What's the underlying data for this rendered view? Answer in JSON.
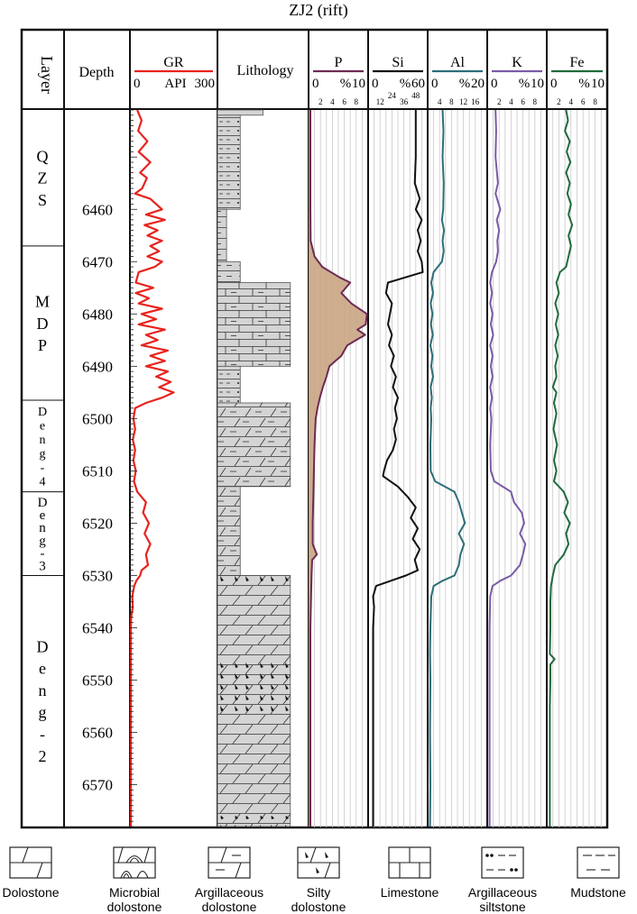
{
  "title": "ZJ2 (rift)",
  "headers": {
    "layer": "Layer",
    "depth": "Depth",
    "lithology": "Lithology"
  },
  "tracks": [
    {
      "id": "gr",
      "name": "GR",
      "scale_left": "0",
      "unit": "API",
      "scale_right": "300",
      "color": "#e8231e",
      "ticks": []
    },
    {
      "id": "p",
      "name": "P",
      "scale_left": "0",
      "unit": "%",
      "scale_right": "10",
      "color": "#6e2a55",
      "ticks": [
        "2",
        "4",
        "6",
        "8"
      ]
    },
    {
      "id": "si",
      "name": "Si",
      "scale_left": "0",
      "unit": "%",
      "scale_right": "60",
      "color": "#111111",
      "ticks": [
        "12",
        "24",
        "36",
        "48"
      ]
    },
    {
      "id": "al",
      "name": "Al",
      "scale_left": "0",
      "unit": "%",
      "scale_right": "20",
      "color": "#2c6e78",
      "ticks": [
        "4",
        "8",
        "12",
        "16"
      ]
    },
    {
      "id": "k",
      "name": "K",
      "scale_left": "0",
      "unit": "%",
      "scale_right": "10",
      "color": "#7b5aa6",
      "ticks": [
        "2",
        "4",
        "6",
        "8"
      ]
    },
    {
      "id": "fe",
      "name": "Fe",
      "scale_left": "0",
      "unit": "%",
      "scale_right": "10",
      "color": "#1e6b3a",
      "ticks": [
        "2",
        "4",
        "6",
        "8"
      ]
    }
  ],
  "depth_axis": {
    "min": 6441,
    "max": 6578,
    "labels": [
      6460,
      6470,
      6480,
      6490,
      6500,
      6510,
      6520,
      6530,
      6540,
      6550,
      6560,
      6570
    ]
  },
  "layers": [
    {
      "name": "QZS",
      "top": 6441,
      "bottom": 6467
    },
    {
      "name": "MDP",
      "top": 6467,
      "bottom": 6496.5
    },
    {
      "name": "Deng-4",
      "top": 6496.5,
      "bottom": 6514
    },
    {
      "name": "Deng-3",
      "top": 6514,
      "bottom": 6530
    },
    {
      "name": "Deng-2",
      "top": 6530,
      "bottom": 6578
    }
  ],
  "lithology_intervals": [
    {
      "top": 6441,
      "bottom": 6442,
      "type": "small",
      "right": 0.5
    },
    {
      "top": 6442,
      "bottom": 6460,
      "type": "argillaceous-siltstone",
      "right": 0.25
    },
    {
      "top": 6460,
      "bottom": 6470,
      "type": "mudstone",
      "right": 0.1
    },
    {
      "top": 6470,
      "bottom": 6474,
      "type": "mudstone",
      "right": 0.25
    },
    {
      "top": 6474,
      "bottom": 6490,
      "type": "limestone",
      "right": 0.8
    },
    {
      "top": 6490,
      "bottom": 6497,
      "type": "argillaceous-siltstone",
      "right": 0.25
    },
    {
      "top": 6497,
      "bottom": 6513,
      "type": "argillaceous-dolostone",
      "right": 0.8
    },
    {
      "top": 6513,
      "bottom": 6530,
      "type": "argillaceous-dolostone",
      "right": 0.25
    },
    {
      "top": 6530,
      "bottom": 6578,
      "type": "dolostone",
      "right": 0.8
    },
    {
      "top": 6530,
      "bottom": 6532,
      "type": "silty-overlay",
      "right": 0.8
    },
    {
      "top": 6546,
      "bottom": 6557,
      "type": "silty-overlay",
      "right": 0.8
    },
    {
      "top": 6576,
      "bottom": 6578,
      "type": "silty-overlay",
      "right": 0.8
    }
  ],
  "curves": {
    "gr": [
      [
        6441,
        25
      ],
      [
        6443,
        40
      ],
      [
        6445,
        28
      ],
      [
        6447,
        60
      ],
      [
        6449,
        30
      ],
      [
        6451,
        70
      ],
      [
        6453,
        35
      ],
      [
        6454,
        58
      ],
      [
        6456,
        42
      ],
      [
        6457,
        18
      ],
      [
        6458,
        70
      ],
      [
        6460,
        110
      ],
      [
        6461,
        55
      ],
      [
        6462,
        120
      ],
      [
        6463,
        50
      ],
      [
        6464,
        95
      ],
      [
        6465,
        60
      ],
      [
        6466,
        110
      ],
      [
        6467,
        70
      ],
      [
        6468,
        100
      ],
      [
        6469,
        60
      ],
      [
        6470,
        110
      ],
      [
        6471,
        85
      ],
      [
        6472,
        30
      ],
      [
        6474,
        20
      ],
      [
        6475,
        80
      ],
      [
        6476,
        20
      ],
      [
        6477,
        65
      ],
      [
        6478,
        30
      ],
      [
        6479,
        110
      ],
      [
        6480,
        40
      ],
      [
        6481,
        90
      ],
      [
        6482,
        30
      ],
      [
        6483,
        120
      ],
      [
        6484,
        55
      ],
      [
        6485,
        95
      ],
      [
        6486,
        40
      ],
      [
        6487,
        130
      ],
      [
        6488,
        70
      ],
      [
        6489,
        120
      ],
      [
        6490,
        55
      ],
      [
        6491,
        130
      ],
      [
        6492,
        90
      ],
      [
        6493,
        140
      ],
      [
        6494,
        100
      ],
      [
        6495,
        150
      ],
      [
        6496,
        110
      ],
      [
        6497,
        55
      ],
      [
        6498,
        18
      ],
      [
        6500,
        12
      ],
      [
        6502,
        18
      ],
      [
        6504,
        10
      ],
      [
        6506,
        18
      ],
      [
        6508,
        12
      ],
      [
        6510,
        20
      ],
      [
        6512,
        14
      ],
      [
        6514,
        25
      ],
      [
        6516,
        55
      ],
      [
        6518,
        45
      ],
      [
        6520,
        65
      ],
      [
        6522,
        50
      ],
      [
        6524,
        70
      ],
      [
        6526,
        55
      ],
      [
        6528,
        62
      ],
      [
        6529,
        40
      ],
      [
        6530,
        35
      ],
      [
        6531,
        22
      ],
      [
        6532,
        15
      ],
      [
        6534,
        8
      ],
      [
        6536,
        10
      ],
      [
        6538,
        4
      ],
      [
        6540,
        3
      ],
      [
        6545,
        3
      ],
      [
        6550,
        3
      ],
      [
        6555,
        3
      ],
      [
        6560,
        3
      ],
      [
        6565,
        3
      ],
      [
        6570,
        3
      ],
      [
        6578,
        3
      ]
    ],
    "p": [
      [
        6441,
        0.3
      ],
      [
        6450,
        0.3
      ],
      [
        6460,
        0.3
      ],
      [
        6466,
        0.35
      ],
      [
        6469,
        1.0
      ],
      [
        6471,
        2.3
      ],
      [
        6473,
        5.2
      ],
      [
        6474,
        7.0
      ],
      [
        6476,
        5.5
      ],
      [
        6478,
        7.2
      ],
      [
        6480,
        9.8
      ],
      [
        6482,
        9.6
      ],
      [
        6483,
        8.2
      ],
      [
        6484,
        9.5
      ],
      [
        6485,
        8.0
      ],
      [
        6486,
        6.5
      ],
      [
        6488,
        5.5
      ],
      [
        6490,
        3.5
      ],
      [
        6492,
        3.0
      ],
      [
        6494,
        2.4
      ],
      [
        6496,
        1.9
      ],
      [
        6498,
        1.5
      ],
      [
        6500,
        1.2
      ],
      [
        6505,
        1.0
      ],
      [
        6510,
        0.9
      ],
      [
        6515,
        0.8
      ],
      [
        6520,
        0.7
      ],
      [
        6524,
        0.7
      ],
      [
        6526,
        1.4
      ],
      [
        6527,
        0.6
      ],
      [
        6530,
        0.5
      ],
      [
        6540,
        0.3
      ],
      [
        6578,
        0.3
      ]
    ],
    "si": [
      [
        6441,
        48
      ],
      [
        6450,
        48
      ],
      [
        6455,
        47
      ],
      [
        6458,
        52
      ],
      [
        6460,
        48
      ],
      [
        6462,
        54
      ],
      [
        6464,
        50
      ],
      [
        6466,
        53
      ],
      [
        6468,
        50
      ],
      [
        6470,
        54
      ],
      [
        6472,
        55
      ],
      [
        6474,
        20
      ],
      [
        6476,
        18
      ],
      [
        6478,
        24
      ],
      [
        6480,
        22
      ],
      [
        6482,
        20
      ],
      [
        6484,
        24
      ],
      [
        6486,
        21
      ],
      [
        6488,
        26
      ],
      [
        6490,
        23
      ],
      [
        6492,
        28
      ],
      [
        6494,
        25
      ],
      [
        6496,
        30
      ],
      [
        6498,
        27
      ],
      [
        6500,
        29
      ],
      [
        6502,
        26
      ],
      [
        6504,
        28
      ],
      [
        6506,
        25
      ],
      [
        6508,
        19
      ],
      [
        6510,
        16
      ],
      [
        6511,
        15
      ],
      [
        6513,
        30
      ],
      [
        6515,
        40
      ],
      [
        6517,
        48
      ],
      [
        6519,
        43
      ],
      [
        6521,
        50
      ],
      [
        6523,
        45
      ],
      [
        6525,
        52
      ],
      [
        6527,
        47
      ],
      [
        6529,
        50
      ],
      [
        6530,
        38
      ],
      [
        6532,
        8
      ],
      [
        6534,
        5
      ],
      [
        6536,
        6
      ],
      [
        6540,
        5
      ],
      [
        6550,
        5
      ],
      [
        6560,
        5
      ],
      [
        6570,
        5
      ],
      [
        6578,
        5
      ]
    ],
    "al": [
      [
        6441,
        5
      ],
      [
        6445,
        5.3
      ],
      [
        6450,
        5
      ],
      [
        6455,
        5.4
      ],
      [
        6460,
        5.2
      ],
      [
        6462,
        4.8
      ],
      [
        6464,
        5.5
      ],
      [
        6466,
        5.0
      ],
      [
        6468,
        5.4
      ],
      [
        6470,
        4.8
      ],
      [
        6472,
        2.0
      ],
      [
        6474,
        1.2
      ],
      [
        6476,
        1.8
      ],
      [
        6478,
        1.0
      ],
      [
        6480,
        1.6
      ],
      [
        6482,
        1.1
      ],
      [
        6484,
        1.7
      ],
      [
        6486,
        0.9
      ],
      [
        6488,
        1.6
      ],
      [
        6490,
        1.2
      ],
      [
        6492,
        1.8
      ],
      [
        6494,
        1.0
      ],
      [
        6496,
        1.4
      ],
      [
        6498,
        1.0
      ],
      [
        6500,
        1.2
      ],
      [
        6505,
        0.9
      ],
      [
        6510,
        1.0
      ],
      [
        6512,
        2.5
      ],
      [
        6514,
        9.0
      ],
      [
        6516,
        10.5
      ],
      [
        6518,
        11.5
      ],
      [
        6520,
        12.5
      ],
      [
        6522,
        10.5
      ],
      [
        6524,
        12.2
      ],
      [
        6526,
        11.0
      ],
      [
        6528,
        10.5
      ],
      [
        6530,
        9.0
      ],
      [
        6531,
        5.0
      ],
      [
        6532,
        2.0
      ],
      [
        6534,
        1.2
      ],
      [
        6540,
        0.9
      ],
      [
        6545,
        0.8
      ],
      [
        6550,
        0.9
      ],
      [
        6560,
        0.8
      ],
      [
        6570,
        0.9
      ],
      [
        6578,
        0.8
      ]
    ],
    "k": [
      [
        6441,
        1.4
      ],
      [
        6445,
        1.5
      ],
      [
        6450,
        1.4
      ],
      [
        6455,
        1.8
      ],
      [
        6457,
        1.4
      ],
      [
        6460,
        2.2
      ],
      [
        6462,
        1.6
      ],
      [
        6464,
        2.0
      ],
      [
        6466,
        1.7
      ],
      [
        6468,
        1.8
      ],
      [
        6470,
        1.5
      ],
      [
        6472,
        0.8
      ],
      [
        6474,
        0.5
      ],
      [
        6476,
        0.8
      ],
      [
        6478,
        0.5
      ],
      [
        6480,
        0.9
      ],
      [
        6482,
        0.6
      ],
      [
        6484,
        1.0
      ],
      [
        6486,
        0.5
      ],
      [
        6488,
        0.9
      ],
      [
        6490,
        0.6
      ],
      [
        6492,
        0.9
      ],
      [
        6494,
        0.5
      ],
      [
        6496,
        0.8
      ],
      [
        6498,
        0.5
      ],
      [
        6500,
        0.7
      ],
      [
        6505,
        0.5
      ],
      [
        6510,
        0.6
      ],
      [
        6512,
        1.2
      ],
      [
        6514,
        4.0
      ],
      [
        6516,
        4.5
      ],
      [
        6518,
        5.8
      ],
      [
        6520,
        6.2
      ],
      [
        6522,
        5.5
      ],
      [
        6524,
        6.4
      ],
      [
        6526,
        6.0
      ],
      [
        6528,
        5.5
      ],
      [
        6530,
        4.0
      ],
      [
        6531,
        2.2
      ],
      [
        6532,
        0.9
      ],
      [
        6534,
        0.5
      ],
      [
        6540,
        0.4
      ],
      [
        6545,
        0.4
      ],
      [
        6550,
        0.4
      ],
      [
        6560,
        0.4
      ],
      [
        6570,
        0.4
      ],
      [
        6578,
        0.4
      ]
    ],
    "fe": [
      [
        6441,
        3.2
      ],
      [
        6443,
        3.5
      ],
      [
        6445,
        3.0
      ],
      [
        6447,
        3.8
      ],
      [
        6449,
        3.3
      ],
      [
        6451,
        3.9
      ],
      [
        6453,
        3.2
      ],
      [
        6455,
        3.8
      ],
      [
        6457,
        3.4
      ],
      [
        6459,
        4.0
      ],
      [
        6461,
        3.6
      ],
      [
        6463,
        4.2
      ],
      [
        6465,
        3.6
      ],
      [
        6467,
        4.0
      ],
      [
        6469,
        3.6
      ],
      [
        6471,
        3.2
      ],
      [
        6472,
        2.2
      ],
      [
        6474,
        1.6
      ],
      [
        6476,
        2.0
      ],
      [
        6478,
        1.4
      ],
      [
        6480,
        1.9
      ],
      [
        6482,
        1.5
      ],
      [
        6484,
        1.9
      ],
      [
        6486,
        1.4
      ],
      [
        6488,
        1.8
      ],
      [
        6490,
        1.4
      ],
      [
        6492,
        1.6
      ],
      [
        6494,
        1.0
      ],
      [
        6495,
        1.6
      ],
      [
        6497,
        1.2
      ],
      [
        6499,
        1.6
      ],
      [
        6502,
        1.1
      ],
      [
        6505,
        1.7
      ],
      [
        6508,
        1.2
      ],
      [
        6510,
        1.6
      ],
      [
        6512,
        1.2
      ],
      [
        6514,
        2.8
      ],
      [
        6516,
        3.5
      ],
      [
        6518,
        2.9
      ],
      [
        6520,
        3.8
      ],
      [
        6522,
        3.2
      ],
      [
        6524,
        3.6
      ],
      [
        6526,
        2.8
      ],
      [
        6528,
        1.4
      ],
      [
        6530,
        1.0
      ],
      [
        6532,
        0.7
      ],
      [
        6535,
        0.6
      ],
      [
        6540,
        0.6
      ],
      [
        6545,
        0.5
      ],
      [
        6546,
        1.3
      ],
      [
        6547,
        0.6
      ],
      [
        6550,
        0.6
      ],
      [
        6555,
        0.5
      ],
      [
        6560,
        0.5
      ],
      [
        6570,
        0.5
      ],
      [
        6578,
        0.5
      ]
    ]
  },
  "legend": [
    {
      "id": "dolostone",
      "label": [
        "Dolostone"
      ]
    },
    {
      "id": "microbial-dolostone",
      "label": [
        "Microbial",
        "dolostone"
      ]
    },
    {
      "id": "argillaceous-dolostone",
      "label": [
        "Argillaceous",
        "dolostone"
      ]
    },
    {
      "id": "silty-dolostone",
      "label": [
        "Silty",
        "dolostone"
      ]
    },
    {
      "id": "limestone",
      "label": [
        "Limestone"
      ]
    },
    {
      "id": "argillaceous-siltstone",
      "label": [
        "Argillaceous",
        "siltstone"
      ]
    },
    {
      "id": "mudstone",
      "label": [
        "Mudstone"
      ]
    }
  ],
  "colors": {
    "lith_fill": "#d4d4d4",
    "p_fill": "#c9a582",
    "grid": "#c8c8c8"
  }
}
